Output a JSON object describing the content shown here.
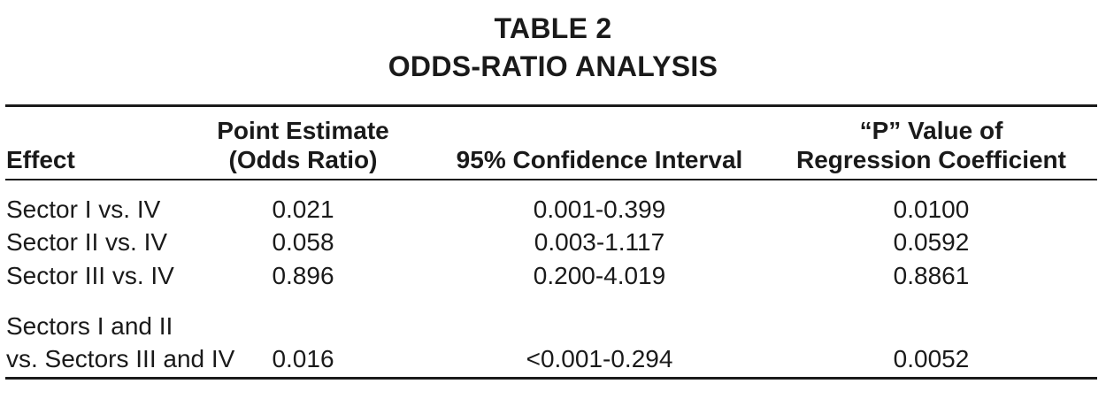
{
  "table": {
    "title_line1": "TABLE 2",
    "title_line2": "ODDS-RATIO ANALYSIS",
    "headers": {
      "effect": "Effect",
      "point_estimate_line1": "Point Estimate",
      "point_estimate_line2": "(Odds Ratio)",
      "confidence_interval": "95% Confidence Interval",
      "p_value_line1": "“P” Value of",
      "p_value_line2": "Regression Coefficient"
    },
    "rows": [
      {
        "effect": "Sector I vs. IV",
        "point_estimate": "0.021",
        "ci": "0.001-0.399",
        "p_value": "0.0100"
      },
      {
        "effect": "Sector II vs. IV",
        "point_estimate": "0.058",
        "ci": "0.003-1.117",
        "p_value": "0.0592"
      },
      {
        "effect": "Sector III vs. IV",
        "point_estimate": "0.896",
        "ci": "0.200-4.019",
        "p_value": "0.8861"
      },
      {
        "effect_line1": "Sectors I and II",
        "effect": "vs. Sectors III and IV",
        "point_estimate": "0.016",
        "ci": "<0.001-0.294",
        "p_value": "0.0052"
      }
    ]
  }
}
